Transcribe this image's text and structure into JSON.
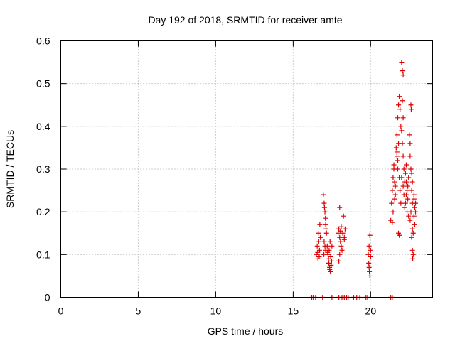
{
  "chart_data": {
    "type": "scatter",
    "title": "Day 192 of 2018, SRMTID for receiver amte",
    "xlabel": "GPS time / hours",
    "ylabel": "SRMTID / TECUs",
    "xlim": [
      0,
      24
    ],
    "ylim": [
      0,
      0.6
    ],
    "xticks": [
      0,
      5,
      10,
      15,
      20
    ],
    "xtick_labels": [
      "0",
      "5",
      "10",
      "15",
      "20"
    ],
    "yticks": [
      0,
      0.1,
      0.2,
      0.3,
      0.4,
      0.5,
      0.6
    ],
    "ytick_labels": [
      "0",
      "0.1",
      "0.2",
      "0.3",
      "0.4",
      "0.5",
      "0.6"
    ],
    "grid": true,
    "marker": "plus",
    "color": "#dd0000",
    "series": [
      {
        "name": "SRMTID",
        "points": [
          [
            16.2,
            0
          ],
          [
            16.3,
            0
          ],
          [
            16.45,
            0
          ],
          [
            16.9,
            0
          ],
          [
            17.5,
            0
          ],
          [
            17.95,
            0
          ],
          [
            18.15,
            0
          ],
          [
            18.3,
            0
          ],
          [
            18.45,
            0
          ],
          [
            18.55,
            0
          ],
          [
            18.9,
            0
          ],
          [
            19.1,
            0
          ],
          [
            19.3,
            0
          ],
          [
            19.7,
            0
          ],
          [
            19.8,
            0
          ],
          [
            21.3,
            0
          ],
          [
            21.4,
            0
          ],
          [
            16.5,
            0.1
          ],
          [
            16.55,
            0.12
          ],
          [
            16.6,
            0.09
          ],
          [
            16.62,
            0.15
          ],
          [
            16.65,
            0.13
          ],
          [
            16.7,
            0.11
          ],
          [
            16.72,
            0.17
          ],
          [
            16.75,
            0.14
          ],
          [
            16.58,
            0.105
          ],
          [
            16.68,
            0.095
          ],
          [
            16.95,
            0.24
          ],
          [
            17.0,
            0.22
          ],
          [
            17.02,
            0.21
          ],
          [
            17.05,
            0.2
          ],
          [
            17.08,
            0.185
          ],
          [
            17.1,
            0.17
          ],
          [
            17.12,
            0.16
          ],
          [
            17.15,
            0.15
          ],
          [
            17.0,
            0.13
          ],
          [
            17.05,
            0.12
          ],
          [
            17.1,
            0.11
          ],
          [
            16.98,
            0.1
          ],
          [
            17.2,
            0.12
          ],
          [
            17.25,
            0.1
          ],
          [
            17.3,
            0.08
          ],
          [
            17.35,
            0.07
          ],
          [
            17.4,
            0.06
          ],
          [
            17.28,
            0.09
          ],
          [
            17.32,
            0.11
          ],
          [
            17.38,
            0.13
          ],
          [
            17.42,
            0.095
          ],
          [
            17.45,
            0.075
          ],
          [
            17.22,
            0.105
          ],
          [
            17.5,
            0.12
          ],
          [
            17.48,
            0.085
          ],
          [
            17.36,
            0.065
          ],
          [
            17.9,
            0.15
          ],
          [
            17.95,
            0.16
          ],
          [
            18.0,
            0.14
          ],
          [
            18.05,
            0.13
          ],
          [
            18.1,
            0.12
          ],
          [
            18.0,
            0.1
          ],
          [
            17.95,
            0.085
          ],
          [
            18.05,
            0.155
          ],
          [
            18.0,
            0.21
          ],
          [
            18.1,
            0.165
          ],
          [
            18.15,
            0.11
          ],
          [
            18.2,
            0.15
          ],
          [
            18.25,
            0.19
          ],
          [
            18.3,
            0.14
          ],
          [
            18.35,
            0.16
          ],
          [
            18.3,
            0.135
          ],
          [
            19.85,
            0.1
          ],
          [
            19.9,
            0.12
          ],
          [
            19.95,
            0.145
          ],
          [
            20.0,
            0.11
          ],
          [
            19.88,
            0.08
          ],
          [
            19.92,
            0.06
          ],
          [
            19.95,
            0.05
          ],
          [
            19.9,
            0.07
          ],
          [
            20.0,
            0.095
          ],
          [
            21.3,
            0.18
          ],
          [
            21.35,
            0.22
          ],
          [
            21.4,
            0.25
          ],
          [
            21.45,
            0.28
          ],
          [
            21.5,
            0.31
          ],
          [
            21.55,
            0.27
          ],
          [
            21.6,
            0.24
          ],
          [
            21.5,
            0.3
          ],
          [
            21.45,
            0.2
          ],
          [
            21.4,
            0.175
          ],
          [
            21.55,
            0.23
          ],
          [
            21.6,
            0.26
          ],
          [
            21.65,
            0.35
          ],
          [
            21.7,
            0.38
          ],
          [
            21.75,
            0.42
          ],
          [
            21.8,
            0.45
          ],
          [
            21.85,
            0.47
          ],
          [
            21.9,
            0.44
          ],
          [
            21.95,
            0.4
          ],
          [
            21.7,
            0.33
          ],
          [
            21.8,
            0.36
          ],
          [
            21.75,
            0.3
          ],
          [
            21.85,
            0.28
          ],
          [
            21.9,
            0.25
          ],
          [
            21.95,
            0.22
          ],
          [
            21.8,
            0.15
          ],
          [
            21.85,
            0.145
          ],
          [
            21.7,
            0.34
          ],
          [
            21.75,
            0.32
          ],
          [
            22.0,
            0.55
          ],
          [
            22.05,
            0.53
          ],
          [
            22.1,
            0.52
          ],
          [
            22.05,
            0.46
          ],
          [
            22.1,
            0.42
          ],
          [
            22.0,
            0.39
          ],
          [
            22.05,
            0.36
          ],
          [
            22.1,
            0.33
          ],
          [
            22.15,
            0.3
          ],
          [
            22.0,
            0.28
          ],
          [
            22.1,
            0.26
          ],
          [
            22.15,
            0.24
          ],
          [
            22.2,
            0.27
          ],
          [
            22.25,
            0.29
          ],
          [
            22.3,
            0.27
          ],
          [
            22.35,
            0.25
          ],
          [
            22.4,
            0.23
          ],
          [
            22.3,
            0.31
          ],
          [
            22.25,
            0.22
          ],
          [
            22.35,
            0.2
          ],
          [
            22.4,
            0.26
          ],
          [
            22.45,
            0.28
          ],
          [
            22.3,
            0.24
          ],
          [
            22.2,
            0.21
          ],
          [
            22.45,
            0.19
          ],
          [
            22.5,
            0.38
          ],
          [
            22.55,
            0.36
          ],
          [
            22.6,
            0.45
          ],
          [
            22.62,
            0.44
          ],
          [
            22.55,
            0.33
          ],
          [
            22.6,
            0.3
          ],
          [
            22.65,
            0.29
          ],
          [
            22.7,
            0.27
          ],
          [
            22.65,
            0.25
          ],
          [
            22.7,
            0.22
          ],
          [
            22.6,
            0.2
          ],
          [
            22.55,
            0.18
          ],
          [
            22.7,
            0.16
          ],
          [
            22.65,
            0.14
          ],
          [
            22.7,
            0.11
          ],
          [
            22.75,
            0.1
          ],
          [
            22.72,
            0.09
          ],
          [
            22.8,
            0.23
          ],
          [
            22.85,
            0.21
          ],
          [
            22.9,
            0.2
          ],
          [
            22.8,
            0.19
          ],
          [
            22.85,
            0.17
          ],
          [
            22.75,
            0.15
          ],
          [
            22.9,
            0.22
          ],
          [
            22.8,
            0.24
          ]
        ]
      }
    ]
  }
}
